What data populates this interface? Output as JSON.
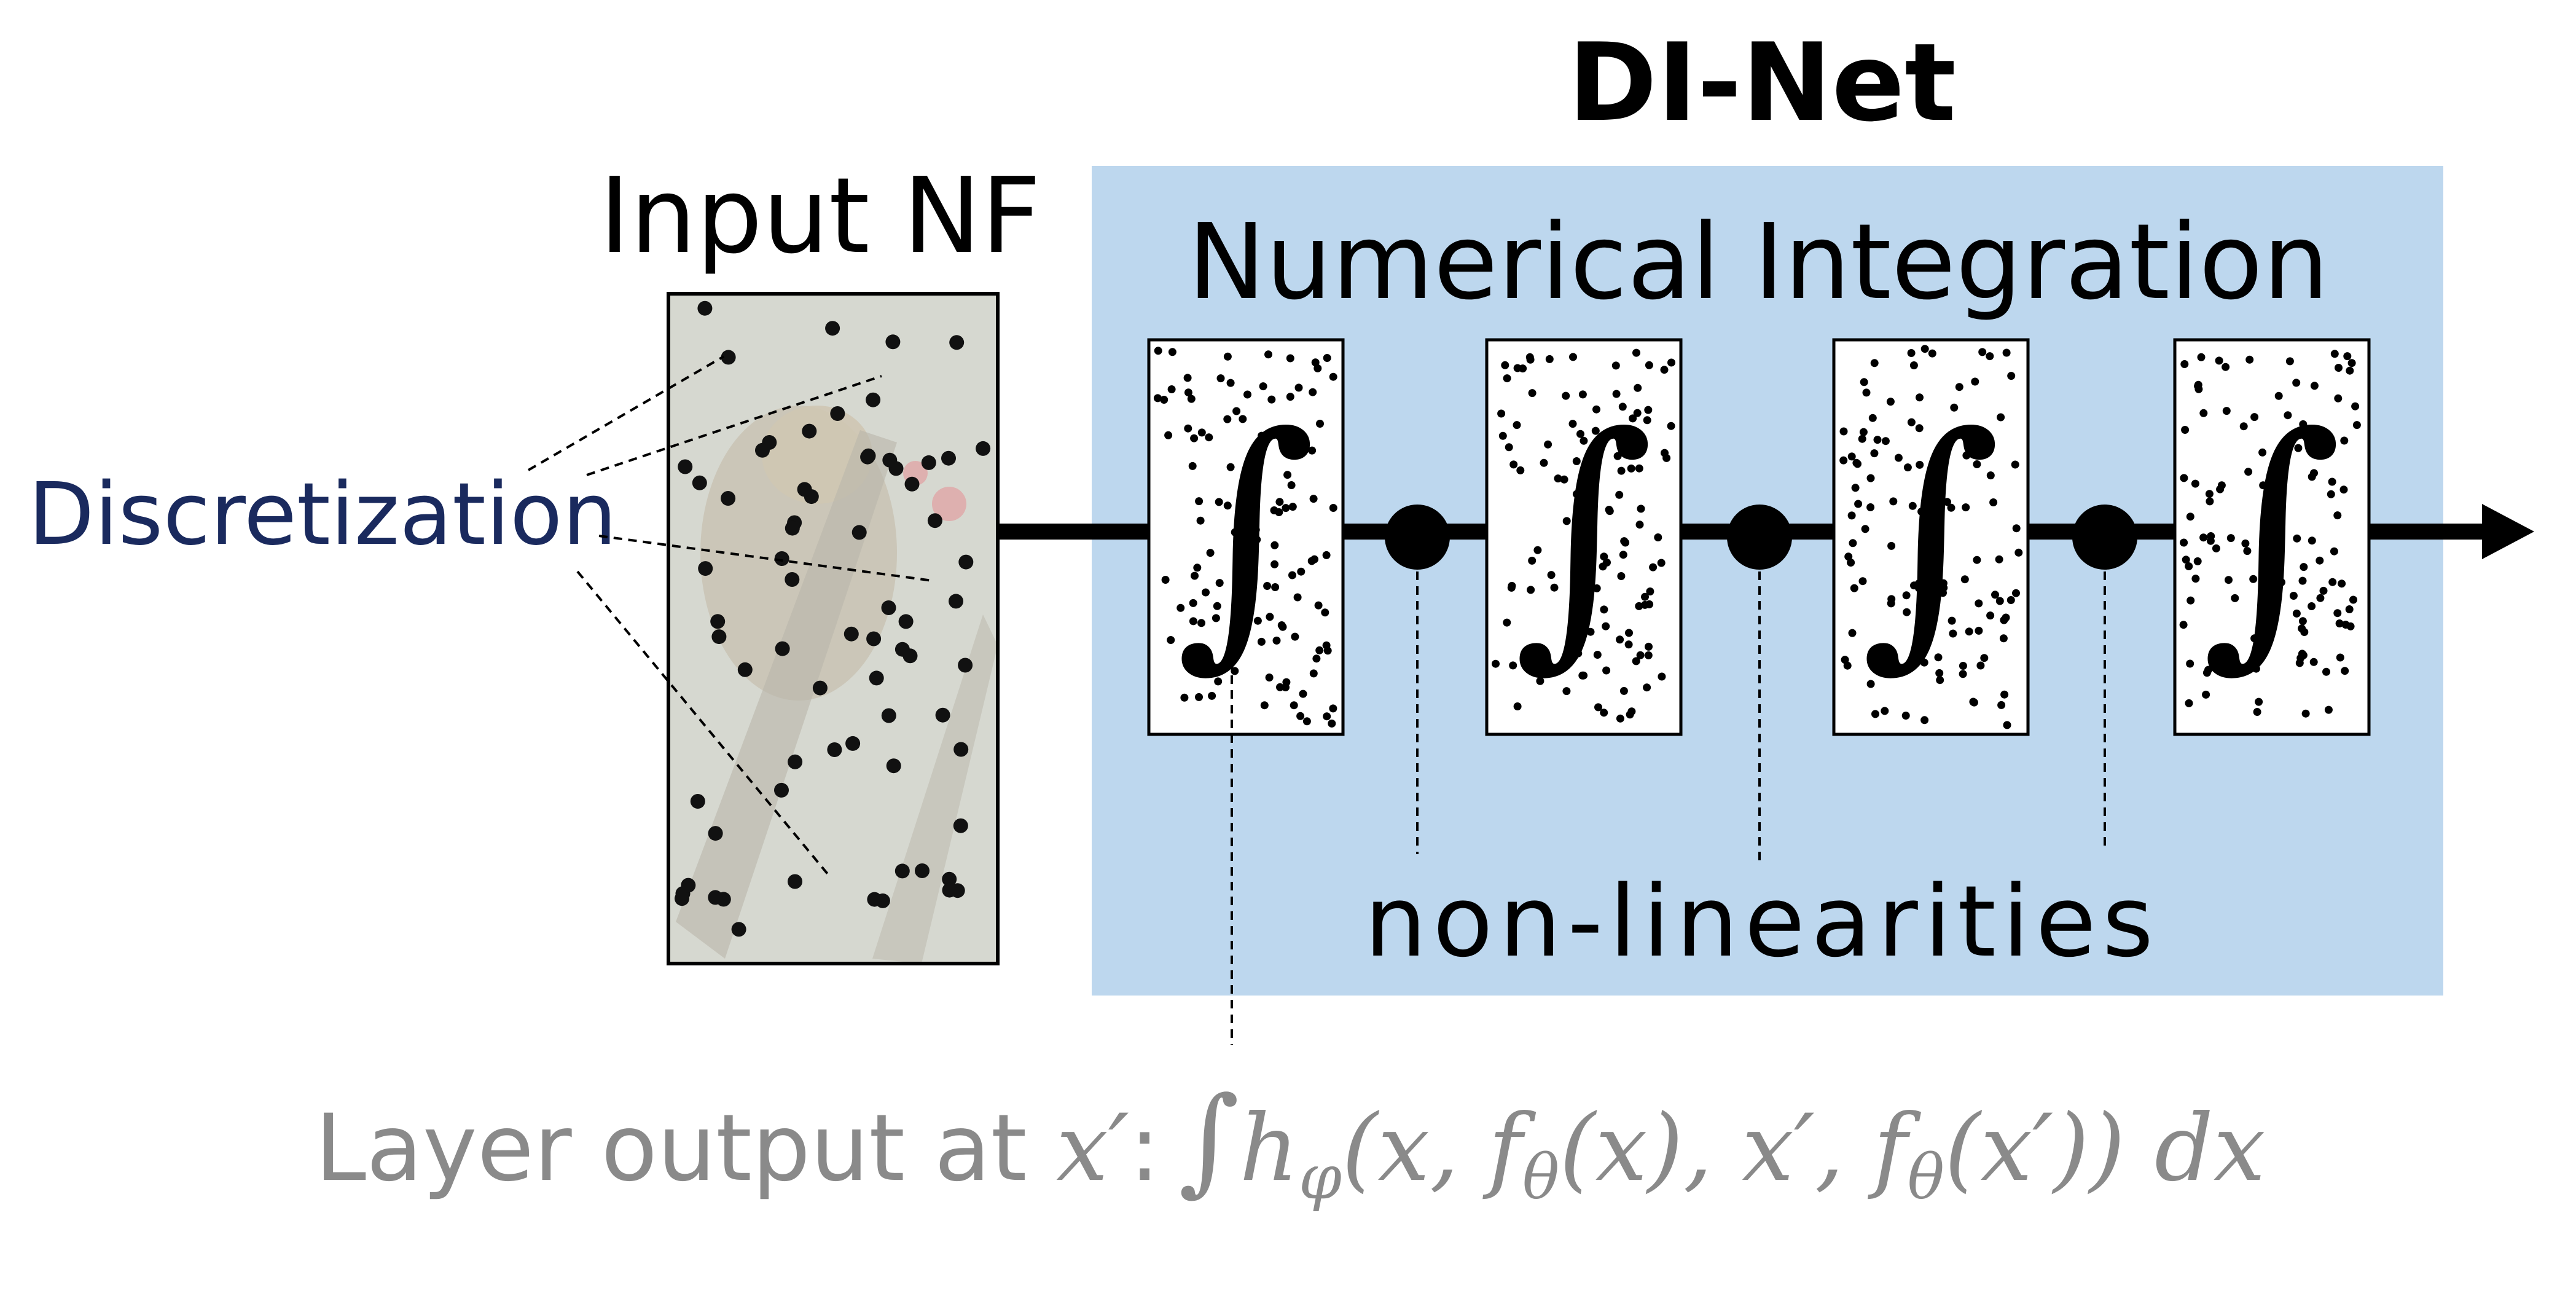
{
  "diagram": {
    "title": "DI-Net",
    "input_label": "Input NF",
    "discretization_label": "Discretization",
    "integration_label": "Numerical Integration",
    "nonlinearities_label": "non-linearities",
    "integral_symbol": "∫",
    "formula": {
      "prefix": "Layer output at ",
      "x_prime": "x′",
      "colon": ":",
      "integral": "∫",
      "h": "h",
      "h_sub": "φ",
      "args_part1": "(x, f",
      "theta1": "θ",
      "args_part2": "(x), x′, f",
      "theta2": "θ",
      "args_part3": "(x′)) dx"
    },
    "colors": {
      "panel_background": "#bdd7ee",
      "discretization_text": "#1a2a5e",
      "formula_text": "#8a8a8a",
      "line": "#000000",
      "input_image_tint": "#d6d8d0"
    }
  }
}
